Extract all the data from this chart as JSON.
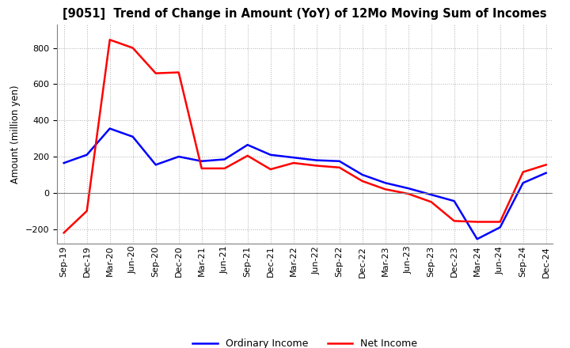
{
  "title": "[9051]  Trend of Change in Amount (YoY) of 12Mo Moving Sum of Incomes",
  "ylabel": "Amount (million yen)",
  "x_labels": [
    "Sep-19",
    "Dec-19",
    "Mar-20",
    "Jun-20",
    "Sep-20",
    "Dec-20",
    "Mar-21",
    "Jun-21",
    "Sep-21",
    "Dec-21",
    "Mar-22",
    "Jun-22",
    "Sep-22",
    "Dec-22",
    "Mar-23",
    "Jun-23",
    "Sep-23",
    "Dec-23",
    "Mar-24",
    "Jun-24",
    "Sep-24",
    "Dec-24"
  ],
  "ordinary_income": [
    165,
    210,
    355,
    310,
    155,
    200,
    175,
    185,
    265,
    210,
    195,
    180,
    175,
    100,
    55,
    25,
    -10,
    -45,
    -255,
    -190,
    55,
    110
  ],
  "net_income": [
    -220,
    -100,
    845,
    800,
    660,
    665,
    135,
    135,
    205,
    130,
    165,
    150,
    140,
    65,
    20,
    -5,
    -50,
    -155,
    -160,
    -160,
    115,
    155
  ],
  "ordinary_color": "#0000ff",
  "net_color": "#ff0000",
  "ylim": [
    -280,
    930
  ],
  "yticks": [
    -200,
    0,
    200,
    400,
    600,
    800
  ],
  "grid_color": "#b0b0b0",
  "background_color": "#ffffff",
  "legend_labels": [
    "Ordinary Income",
    "Net Income"
  ],
  "title_fontsize": 10.5,
  "axis_fontsize": 8.5,
  "tick_fontsize": 8
}
